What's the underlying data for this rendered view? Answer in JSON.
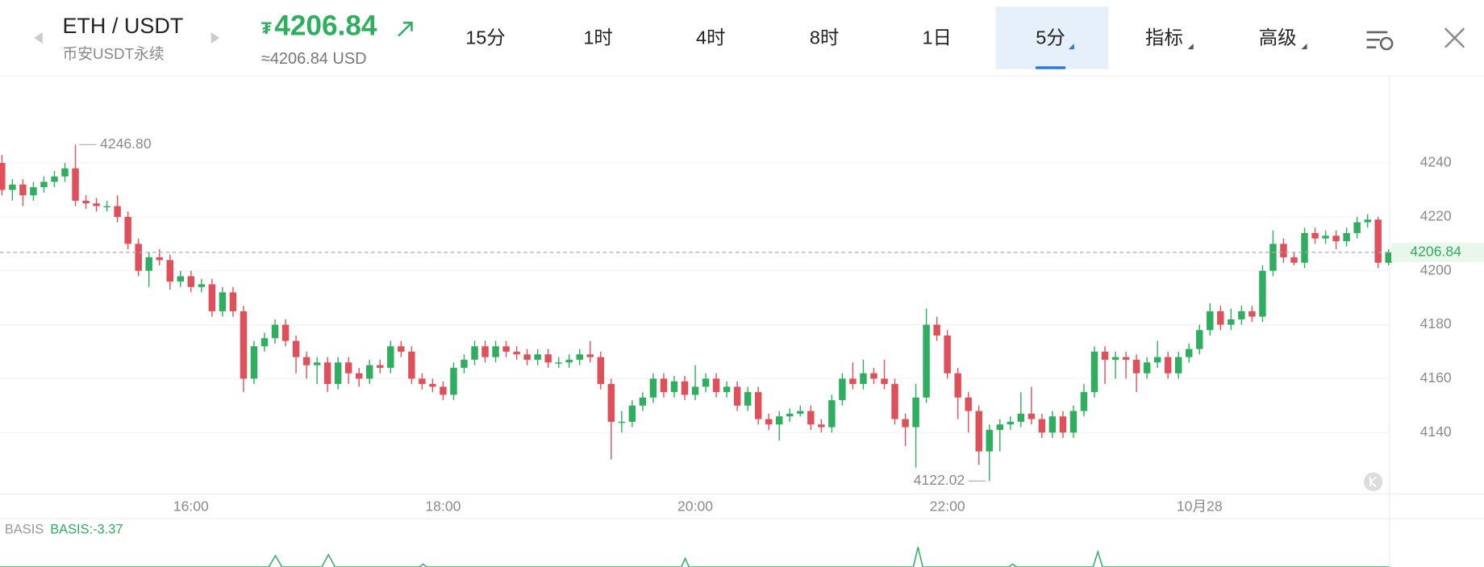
{
  "header": {
    "symbol": "ETH / USDT",
    "exchange": "币安USDT永续",
    "currency_symbol": "₮",
    "price": "4206.84",
    "usd_price": "≈4206.84 USD"
  },
  "tabs": [
    "15分",
    "1时",
    "4时",
    "8时",
    "1日",
    "5分",
    "指标",
    "高级"
  ],
  "selected_tab": 5,
  "indicator": {
    "name": "BASIS",
    "value_label": "BASIS:-3.37"
  },
  "chart_data": {
    "type": "candlestick",
    "up_color": "#2fae5f",
    "down_color": "#e0505a",
    "grid": true,
    "ylim": [
      4117,
      4272
    ],
    "yticks": [
      4140,
      4160,
      4180,
      4200,
      4220,
      4240
    ],
    "last_price": 4206.84,
    "high_label": {
      "value": 4246.8,
      "label": "4246.80"
    },
    "low_label": {
      "value": 4122.02,
      "label": "4122.02"
    },
    "categories": [
      null,
      null,
      null,
      null,
      null,
      null,
      null,
      null,
      null,
      null,
      null,
      null,
      null,
      null,
      null,
      null,
      null,
      null,
      "16:00",
      null,
      null,
      null,
      null,
      null,
      null,
      null,
      null,
      null,
      null,
      null,
      null,
      null,
      null,
      null,
      null,
      null,
      null,
      null,
      null,
      null,
      null,
      null,
      "18:00",
      null,
      null,
      null,
      null,
      null,
      null,
      null,
      null,
      null,
      null,
      null,
      null,
      null,
      null,
      null,
      null,
      null,
      null,
      null,
      null,
      null,
      null,
      null,
      "20:00",
      null,
      null,
      null,
      null,
      null,
      null,
      null,
      null,
      null,
      null,
      null,
      null,
      null,
      null,
      null,
      null,
      null,
      null,
      null,
      null,
      null,
      null,
      null,
      "22:00",
      null,
      null,
      null,
      null,
      null,
      null,
      null,
      null,
      null,
      null,
      null,
      null,
      null,
      null,
      null,
      null,
      null,
      null,
      null,
      null,
      null,
      null,
      null,
      "10月28",
      null,
      null,
      null,
      null,
      null,
      null,
      null,
      null,
      null,
      null,
      null,
      null,
      null,
      null,
      null,
      null,
      null,
      null
    ],
    "candles": [
      [
        4240,
        4243,
        4228,
        4230
      ],
      [
        4230,
        4234,
        4226,
        4232
      ],
      [
        4232,
        4234,
        4224,
        4228
      ],
      [
        4228,
        4233,
        4226,
        4231
      ],
      [
        4231,
        4235,
        4229,
        4233
      ],
      [
        4233,
        4237,
        4231,
        4235
      ],
      [
        4235,
        4240,
        4233,
        4238
      ],
      [
        4238,
        4246.8,
        4224,
        4226
      ],
      [
        4226,
        4228,
        4223,
        4225
      ],
      [
        4225,
        4227,
        4222,
        4224
      ],
      [
        4224,
        4226,
        4222,
        4224
      ],
      [
        4224,
        4228,
        4218,
        4220
      ],
      [
        4220,
        4222,
        4208,
        4210
      ],
      [
        4210,
        4212,
        4198,
        4200
      ],
      [
        4200,
        4207,
        4194,
        4205
      ],
      [
        4205,
        4208,
        4202,
        4204
      ],
      [
        4204,
        4206,
        4193,
        4196
      ],
      [
        4196,
        4200,
        4194,
        4198
      ],
      [
        4198,
        4200,
        4192,
        4194
      ],
      [
        4194,
        4197,
        4192,
        4195
      ],
      [
        4195,
        4197,
        4183,
        4185
      ],
      [
        4185,
        4194,
        4183,
        4192
      ],
      [
        4192,
        4194,
        4183,
        4185
      ],
      [
        4185,
        4187,
        4155,
        4160
      ],
      [
        4160,
        4174,
        4158,
        4172
      ],
      [
        4172,
        4177,
        4170,
        4175
      ],
      [
        4175,
        4182,
        4173,
        4180
      ],
      [
        4180,
        4182,
        4172,
        4174
      ],
      [
        4174,
        4176,
        4162,
        4168
      ],
      [
        4168,
        4170,
        4160,
        4165
      ],
      [
        4165,
        4168,
        4158,
        4166
      ],
      [
        4166,
        4168,
        4155,
        4158
      ],
      [
        4158,
        4168,
        4156,
        4166
      ],
      [
        4166,
        4168,
        4158,
        4162
      ],
      [
        4162,
        4164,
        4157,
        4160
      ],
      [
        4160,
        4167,
        4158,
        4165
      ],
      [
        4165,
        4167,
        4162,
        4164
      ],
      [
        4164,
        4174,
        4162,
        4172
      ],
      [
        4172,
        4174,
        4168,
        4170
      ],
      [
        4170,
        4172,
        4158,
        4160
      ],
      [
        4160,
        4162,
        4156,
        4158
      ],
      [
        4158,
        4160,
        4155,
        4157
      ],
      [
        4157,
        4159,
        4152,
        4154
      ],
      [
        4154,
        4166,
        4152,
        4164
      ],
      [
        4164,
        4169,
        4162,
        4167
      ],
      [
        4167,
        4174,
        4165,
        4172
      ],
      [
        4172,
        4174,
        4166,
        4168
      ],
      [
        4168,
        4174,
        4166,
        4172
      ],
      [
        4172,
        4174,
        4168,
        4170
      ],
      [
        4170,
        4172,
        4167,
        4169
      ],
      [
        4169,
        4171,
        4165,
        4167
      ],
      [
        4167,
        4171,
        4165,
        4169
      ],
      [
        4169,
        4171,
        4164,
        4166
      ],
      [
        4166,
        4168,
        4164,
        4166
      ],
      [
        4166,
        4169,
        4164,
        4167
      ],
      [
        4167,
        4171,
        4165,
        4169
      ],
      [
        4169,
        4174,
        4166,
        4168
      ],
      [
        4168,
        4170,
        4156,
        4158
      ],
      [
        4158,
        4160,
        4130,
        4144
      ],
      [
        4144,
        4148,
        4140,
        4144
      ],
      [
        4144,
        4152,
        4142,
        4150
      ],
      [
        4150,
        4155,
        4148,
        4153
      ],
      [
        4153,
        4162,
        4151,
        4160
      ],
      [
        4160,
        4162,
        4153,
        4155
      ],
      [
        4155,
        4161,
        4153,
        4159
      ],
      [
        4159,
        4161,
        4152,
        4154
      ],
      [
        4154,
        4165,
        4152,
        4157
      ],
      [
        4157,
        4162,
        4155,
        4160
      ],
      [
        4160,
        4162,
        4153,
        4155
      ],
      [
        4155,
        4159,
        4153,
        4157
      ],
      [
        4157,
        4159,
        4148,
        4150
      ],
      [
        4150,
        4157,
        4148,
        4155
      ],
      [
        4155,
        4157,
        4143,
        4145
      ],
      [
        4145,
        4147,
        4141,
        4143
      ],
      [
        4143,
        4148,
        4137,
        4146
      ],
      [
        4146,
        4149,
        4144,
        4147
      ],
      [
        4147,
        4150,
        4146,
        4148
      ],
      [
        4148,
        4150,
        4141,
        4143
      ],
      [
        4143,
        4145,
        4140,
        4142
      ],
      [
        4142,
        4154,
        4140,
        4152
      ],
      [
        4152,
        4162,
        4150,
        4160
      ],
      [
        4160,
        4166,
        4156,
        4158
      ],
      [
        4158,
        4167,
        4156,
        4162
      ],
      [
        4162,
        4164,
        4158,
        4160
      ],
      [
        4160,
        4167,
        4156,
        4158
      ],
      [
        4158,
        4160,
        4143,
        4145
      ],
      [
        4145,
        4147,
        4135,
        4142
      ],
      [
        4142,
        4158,
        4127,
        4153
      ],
      [
        4153,
        4186,
        4151,
        4180
      ],
      [
        4180,
        4183,
        4174,
        4176
      ],
      [
        4176,
        4178,
        4160,
        4162
      ],
      [
        4162,
        4164,
        4145,
        4153
      ],
      [
        4153,
        4155,
        4140,
        4148
      ],
      [
        4148,
        4150,
        4128,
        4133
      ],
      [
        4133,
        4143,
        4122.02,
        4141
      ],
      [
        4141,
        4145,
        4133,
        4143
      ],
      [
        4143,
        4146,
        4141,
        4144
      ],
      [
        4144,
        4155,
        4142,
        4147
      ],
      [
        4147,
        4157,
        4143,
        4145
      ],
      [
        4145,
        4147,
        4138,
        4140
      ],
      [
        4140,
        4148,
        4138,
        4146
      ],
      [
        4146,
        4148,
        4138,
        4140
      ],
      [
        4140,
        4150,
        4138,
        4148
      ],
      [
        4148,
        4158,
        4146,
        4155
      ],
      [
        4155,
        4172,
        4153,
        4170
      ],
      [
        4170,
        4172,
        4158,
        4167
      ],
      [
        4167,
        4170,
        4160,
        4168
      ],
      [
        4168,
        4170,
        4160,
        4167
      ],
      [
        4167,
        4169,
        4155,
        4162
      ],
      [
        4162,
        4168,
        4160,
        4166
      ],
      [
        4166,
        4174,
        4164,
        4168
      ],
      [
        4168,
        4170,
        4160,
        4162
      ],
      [
        4162,
        4170,
        4160,
        4168
      ],
      [
        4168,
        4173,
        4166,
        4171
      ],
      [
        4171,
        4180,
        4169,
        4178
      ],
      [
        4178,
        4188,
        4176,
        4185
      ],
      [
        4185,
        4187,
        4178,
        4180
      ],
      [
        4180,
        4186,
        4178,
        4182
      ],
      [
        4182,
        4187,
        4180,
        4185
      ],
      [
        4185,
        4187,
        4181,
        4183
      ],
      [
        4183,
        4202,
        4181,
        4200
      ],
      [
        4200,
        4215,
        4198,
        4210
      ],
      [
        4210,
        4212,
        4203,
        4205
      ],
      [
        4205,
        4207,
        4202,
        4203
      ],
      [
        4203,
        4216,
        4201,
        4214
      ],
      [
        4214,
        4216,
        4210,
        4212
      ],
      [
        4212,
        4215,
        4210,
        4213
      ],
      [
        4213,
        4215,
        4208,
        4211
      ],
      [
        4211,
        4216,
        4209,
        4214
      ],
      [
        4214,
        4220,
        4212,
        4218
      ],
      [
        4218,
        4221,
        4216,
        4219
      ],
      [
        4219,
        4220,
        4201,
        4203
      ],
      [
        4203,
        4208,
        4202,
        4206.84
      ]
    ]
  }
}
